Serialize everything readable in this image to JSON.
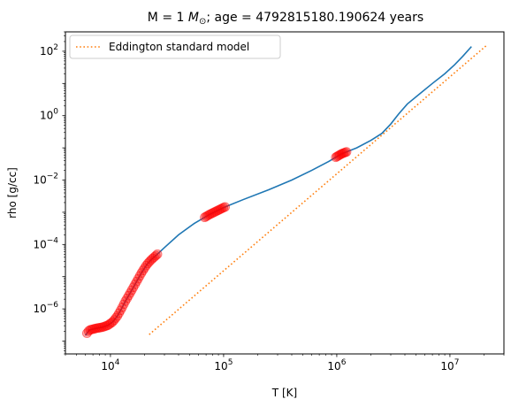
{
  "chart_data": {
    "type": "line",
    "title": "M = 1 M⊙; age = 4792815180.190624 years",
    "title_parts": {
      "prefix": "M = 1 ",
      "unit_italic": "M",
      "unit_sub": "⊙",
      "suffix": "; age = 4792815180.190624 years"
    },
    "xlabel": "T [K]",
    "ylabel": "rho [g/cc]",
    "xscale": "log",
    "yscale": "log",
    "xlim": [
      4000,
      30000000
    ],
    "ylim": [
      4e-08,
      400
    ],
    "x_ticks": [
      {
        "value": 10000,
        "base": "10",
        "exp": "4"
      },
      {
        "value": 100000,
        "base": "10",
        "exp": "5"
      },
      {
        "value": 1000000,
        "base": "10",
        "exp": "6"
      },
      {
        "value": 10000000,
        "base": "10",
        "exp": "7"
      }
    ],
    "y_ticks": [
      {
        "value": 1e-06,
        "base": "10",
        "exp": "−6"
      },
      {
        "value": 0.0001,
        "base": "10",
        "exp": "−4"
      },
      {
        "value": 0.01,
        "base": "10",
        "exp": "−2"
      },
      {
        "value": 1,
        "base": "10",
        "exp": "0"
      },
      {
        "value": 100,
        "base": "10",
        "exp": "2"
      }
    ],
    "legend": {
      "location": "top-left",
      "entries": [
        {
          "label": "Eddington standard model",
          "style": "dotted",
          "color": "#ff7f0e"
        }
      ]
    },
    "series": [
      {
        "name": "stellar profile",
        "style": "solid",
        "color": "#1f77b4",
        "points": [
          [
            6000,
            1.5e-07
          ],
          [
            6500,
            2.2e-07
          ],
          [
            7500,
            2.5e-07
          ],
          [
            8500,
            2.7e-07
          ],
          [
            9500,
            3.1e-07
          ],
          [
            10500,
            4e-07
          ],
          [
            11500,
            6e-07
          ],
          [
            12500,
            1e-06
          ],
          [
            13500,
            1.7e-06
          ],
          [
            15000,
            3.2e-06
          ],
          [
            17000,
            7e-06
          ],
          [
            19000,
            1.4e-05
          ],
          [
            21000,
            2.4e-05
          ],
          [
            23000,
            3.4e-05
          ],
          [
            26000,
            5e-05
          ],
          [
            30000,
            8e-05
          ],
          [
            40000,
            0.0002
          ],
          [
            55000,
            0.00045
          ],
          [
            75000,
            0.00085
          ],
          [
            100000,
            0.0014
          ],
          [
            150000,
            0.0025
          ],
          [
            250000,
            0.005
          ],
          [
            400000,
            0.01
          ],
          [
            600000,
            0.02
          ],
          [
            850000,
            0.038
          ],
          [
            1100000,
            0.065
          ],
          [
            1500000,
            0.1
          ],
          [
            2000000,
            0.17
          ],
          [
            2500000,
            0.28
          ],
          [
            3000000,
            0.55
          ],
          [
            3500000,
            1.1
          ],
          [
            4200000,
            2.3
          ],
          [
            5500000,
            5
          ],
          [
            7000000,
            10
          ],
          [
            9000000,
            20
          ],
          [
            11000000,
            38
          ],
          [
            13000000,
            70
          ],
          [
            15500000,
            140
          ]
        ]
      },
      {
        "name": "Eddington standard model",
        "style": "dotted",
        "color": "#ff7f0e",
        "points": [
          [
            22000,
            1.6e-07
          ],
          [
            21000000,
            150
          ]
        ]
      }
    ],
    "highlight_markers": {
      "color": "#ff0000",
      "segments": [
        {
          "x_range": [
            6200,
            26000
          ]
        },
        {
          "x_range": [
            68000,
            103000
          ]
        },
        {
          "x_range": [
            980000,
            1220000
          ]
        }
      ]
    }
  }
}
